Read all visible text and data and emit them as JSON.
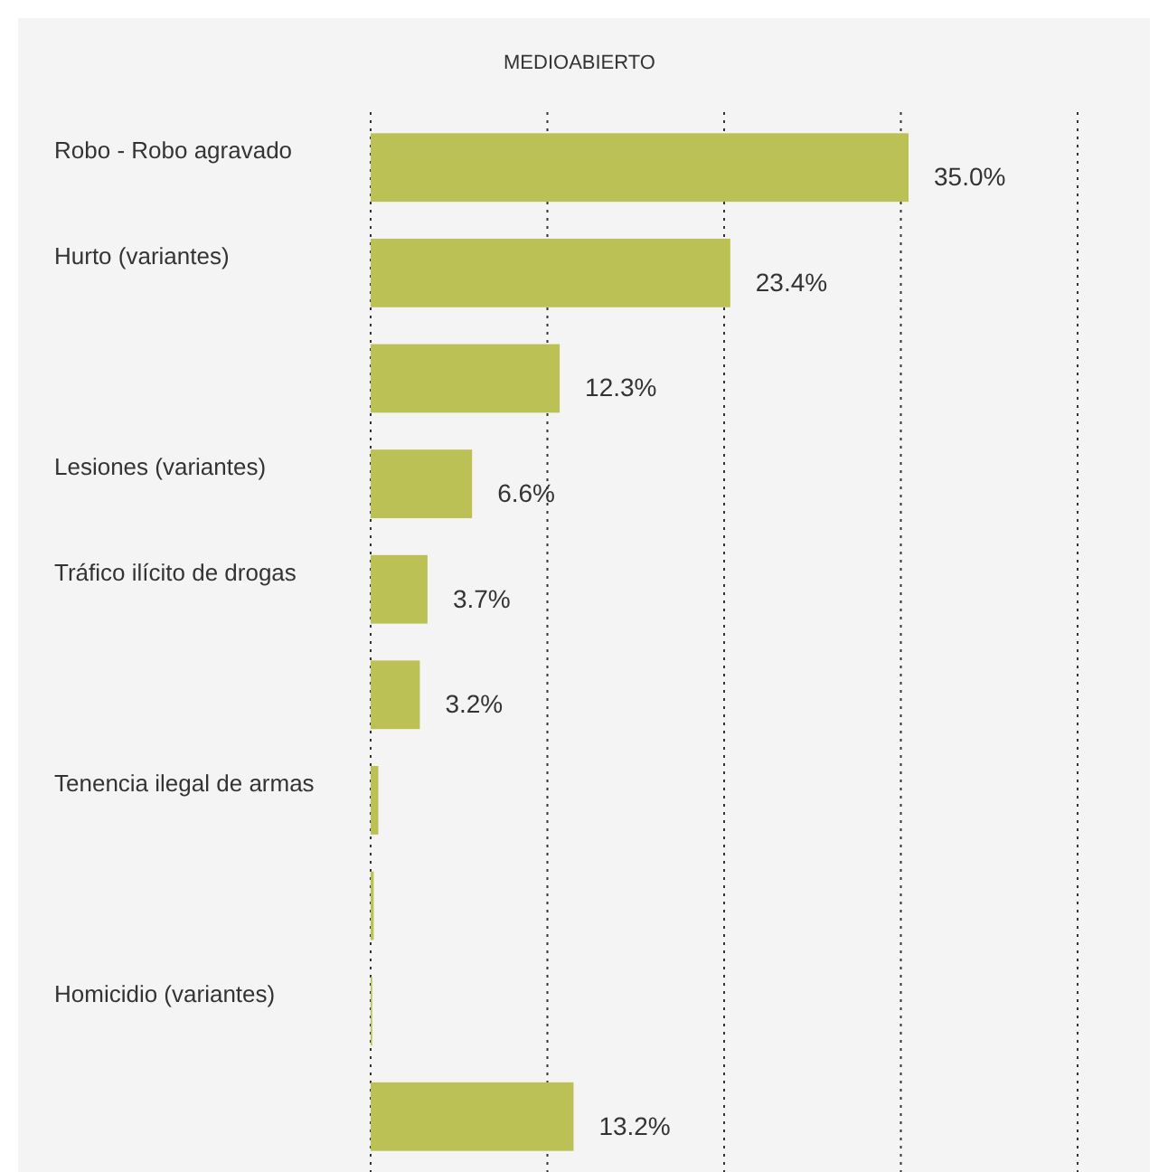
{
  "chart_data": {
    "type": "bar",
    "orientation": "horizontal",
    "title": "MEDIOABIERTO",
    "categories": [
      "Robo - Robo agravado",
      "Hurto (variantes)",
      null,
      "Lesiones (variantes)",
      "Tráfico ilícito de drogas",
      null,
      "Tenencia ilegal de armas",
      null,
      "Homicidio (variantes)",
      null
    ],
    "values": [
      35.0,
      23.4,
      12.3,
      6.6,
      3.7,
      3.2,
      0.5,
      0.2,
      0.1,
      13.2
    ],
    "value_labels": [
      "35.0%",
      "23.4%",
      "12.3%",
      "6.6%",
      "3.7%",
      "3.2%",
      null,
      null,
      null,
      "13.2%"
    ],
    "color": "#bbc154",
    "xlim": [
      0,
      46
    ],
    "xticks": [
      {
        "value": 0,
        "label": null
      },
      {
        "value": 11.5,
        "label": null
      },
      {
        "value": 23,
        "label": null
      },
      {
        "value": 34.5,
        "label": null
      },
      {
        "value": 46,
        "label": null
      }
    ],
    "grid": "x"
  }
}
